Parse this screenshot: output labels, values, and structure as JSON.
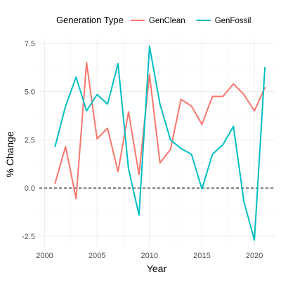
{
  "chart_data": {
    "type": "line",
    "title": "",
    "xlabel": "Year",
    "ylabel": "% Change",
    "xlim": [
      1999.5,
      2022.0
    ],
    "ylim": [
      -3.05,
      7.75
    ],
    "x_ticks": [
      2000,
      2005,
      2010,
      2015,
      2020
    ],
    "y_ticks": [
      -2.5,
      0.0,
      2.5,
      5.0,
      7.5
    ],
    "x_tick_labels": [
      "2000",
      "2005",
      "2010",
      "2015",
      "2020"
    ],
    "y_tick_labels": [
      "-2.5",
      "0.0",
      "2.5",
      "5.0",
      "7.5"
    ],
    "grid": true,
    "reference_line": {
      "y": 0,
      "style": "dashed"
    },
    "legend": {
      "title": "Generation Type",
      "position": "top"
    },
    "x": [
      2001,
      2002,
      2003,
      2004,
      2005,
      2006,
      2007,
      2008,
      2009,
      2010,
      2011,
      2012,
      2013,
      2014,
      2015,
      2016,
      2017,
      2018,
      2019,
      2020,
      2021
    ],
    "series": [
      {
        "name": "GenClean",
        "color": "#F8766D",
        "values": [
          0.25,
          2.15,
          -0.55,
          6.5,
          2.55,
          3.1,
          0.85,
          3.95,
          0.7,
          5.9,
          1.3,
          2.0,
          4.6,
          4.25,
          3.3,
          4.75,
          4.75,
          5.4,
          4.85,
          4.0,
          5.2
        ]
      },
      {
        "name": "GenFossil",
        "color": "#00BFC4",
        "values": [
          2.15,
          4.25,
          5.75,
          4.0,
          4.85,
          4.35,
          6.45,
          1.0,
          -1.4,
          7.35,
          4.35,
          2.5,
          2.05,
          1.75,
          -0.05,
          1.75,
          2.25,
          3.2,
          -0.7,
          -2.7,
          6.25
        ]
      }
    ]
  }
}
